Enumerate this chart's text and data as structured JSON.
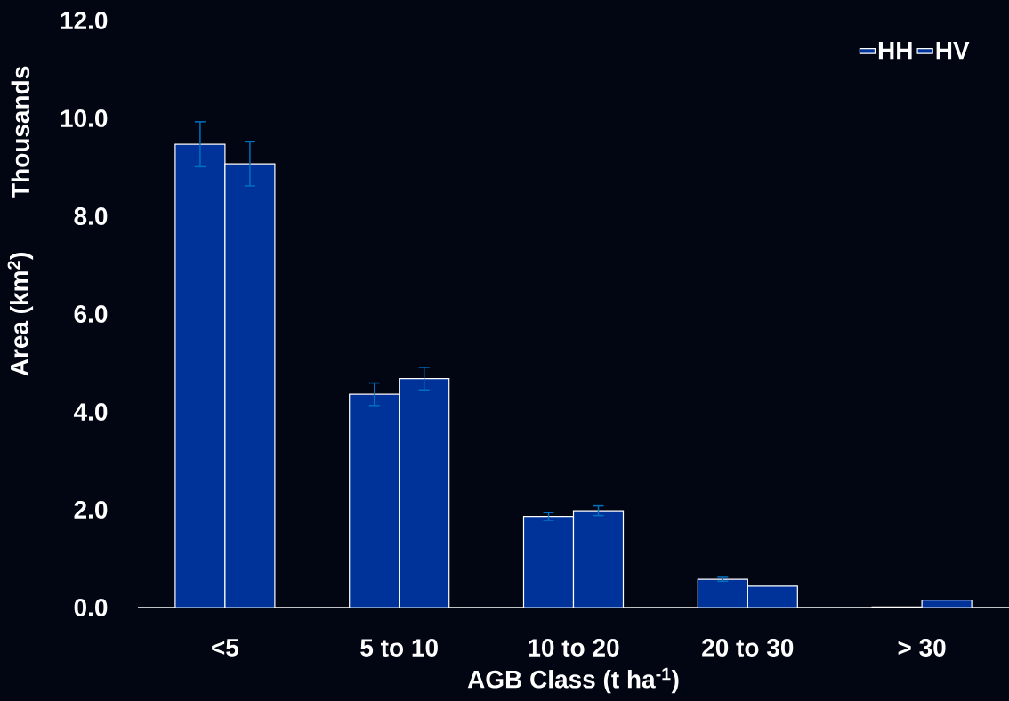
{
  "chart_data": {
    "type": "bar",
    "xlabel": "AGB Class (t ha$^{-1}$)",
    "ylabel": "Area (km$^{2}$)",
    "annotations": [
      "Thousands"
    ],
    "categories": [
      "<5",
      "5 to 10",
      "10 to 20",
      "20 to 30",
      "> 30"
    ],
    "series": [
      {
        "name": "HH",
        "color": "#003399",
        "values": [
          9.47,
          4.36,
          1.86,
          0.58,
          0.01
        ],
        "errors": [
          0.46,
          0.23,
          0.08,
          0.04,
          null
        ]
      },
      {
        "name": "HV",
        "color": "#003399",
        "values": [
          9.07,
          4.68,
          1.98,
          0.44,
          0.15
        ],
        "errors": [
          0.45,
          0.23,
          0.1,
          null,
          null
        ]
      }
    ],
    "ylim": [
      0,
      12
    ],
    "yticks": [
      {
        "value": 0,
        "label": "0.0"
      },
      {
        "value": 2,
        "label": "2.0"
      },
      {
        "value": 4,
        "label": "4.0"
      },
      {
        "value": 6,
        "label": "6.0"
      },
      {
        "value": 8,
        "label": "8.0"
      },
      {
        "value": 10,
        "label": "10.0"
      },
      {
        "value": 12,
        "label": "12.0"
      }
    ],
    "grid": false,
    "legend": "top right"
  }
}
